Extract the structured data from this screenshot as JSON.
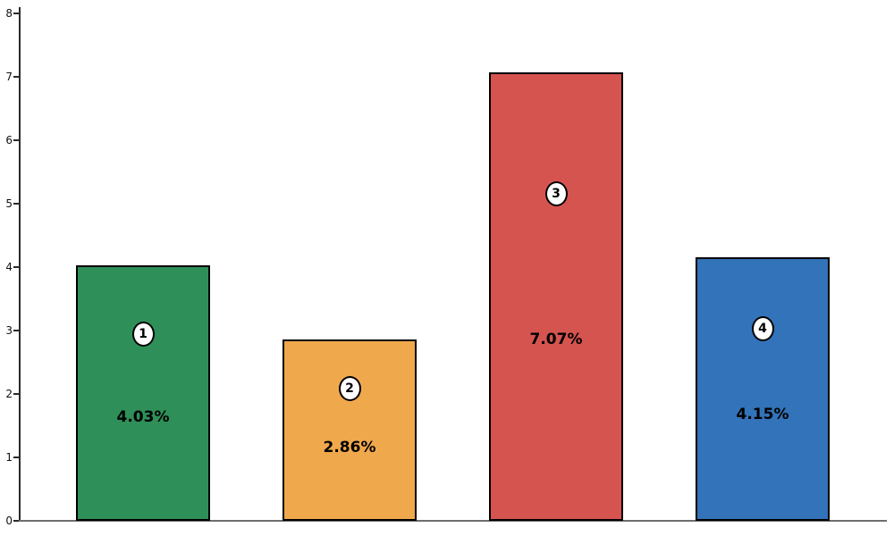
{
  "chart_data": {
    "type": "bar",
    "categories": [
      "1",
      "2",
      "3",
      "4"
    ],
    "values": [
      4.03,
      2.86,
      7.07,
      4.15
    ],
    "bar_labels": [
      "4.03%",
      "2.86%",
      "7.07%",
      "4.15%"
    ],
    "badge_labels": [
      "1",
      "2",
      "3",
      "4"
    ],
    "bar_colors": [
      "#2f8f58",
      "#f0a84d",
      "#d65450",
      "#3273b9"
    ],
    "bar_edge_color": "#000000",
    "title": "",
    "xlabel": "",
    "ylabel": "",
    "ylim": [
      0,
      8
    ],
    "yticks": [
      "0",
      "1",
      "2",
      "3",
      "4",
      "5",
      "6",
      "7",
      "8"
    ],
    "x_tick_labels_visible": false,
    "grid": false,
    "legend_visible": false,
    "background_color": "#ffffff",
    "axis_color": "#2b2b2b"
  }
}
